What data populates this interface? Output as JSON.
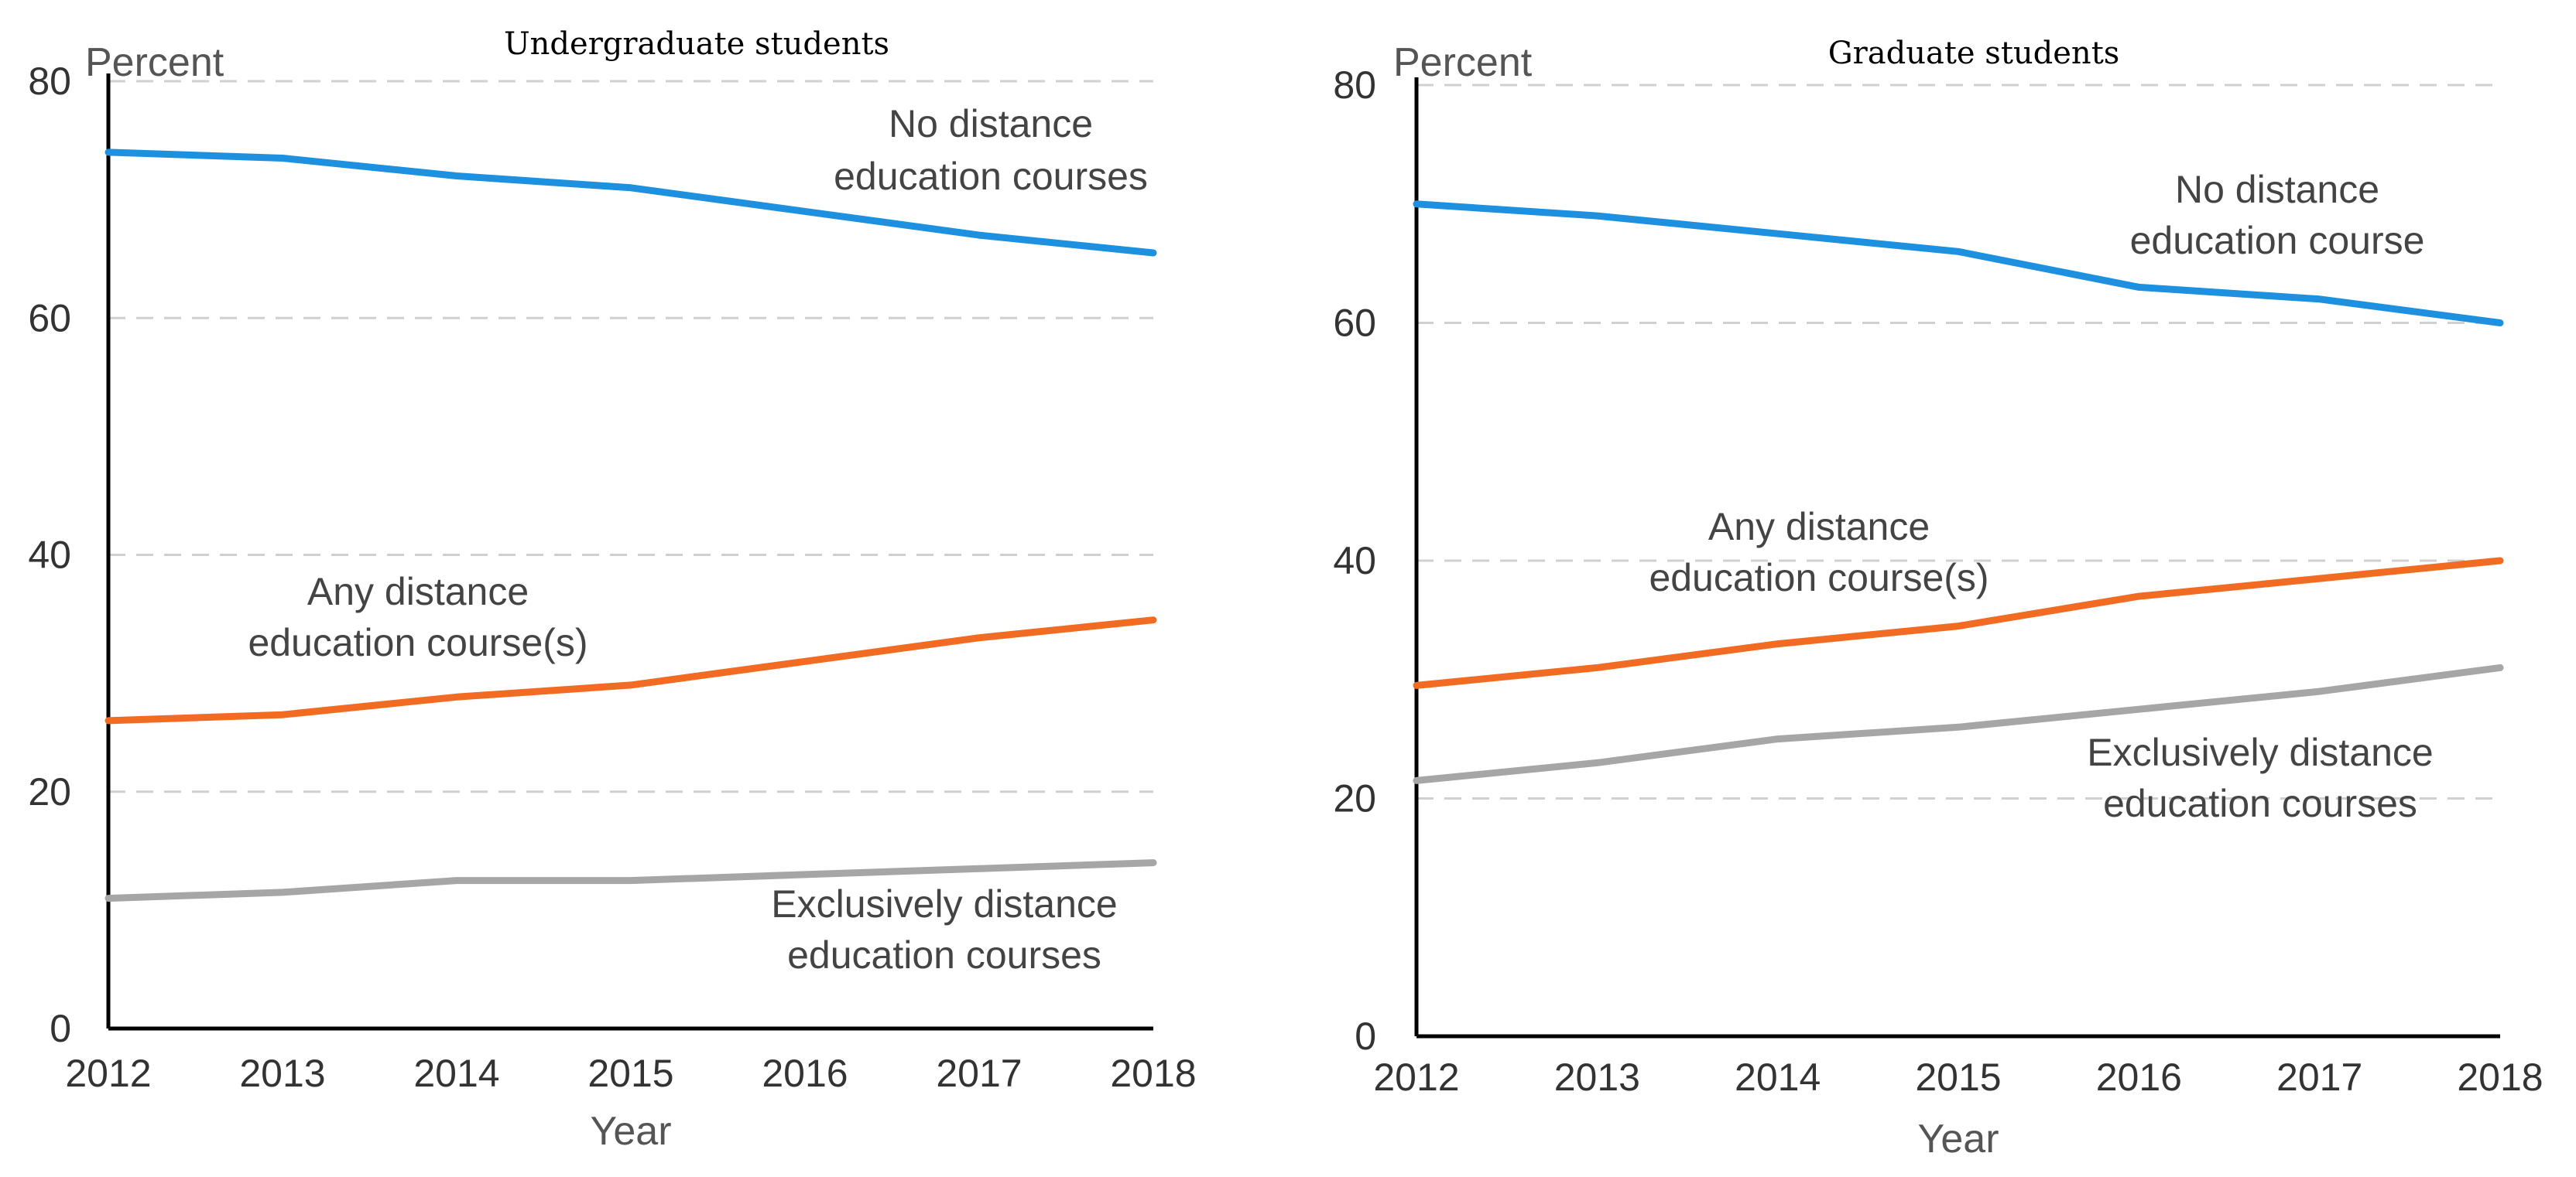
{
  "chart_data": [
    {
      "type": "line",
      "title": "Undergraduate students",
      "ylabel": "Percent",
      "xlabel": "Year",
      "x": [
        2012,
        2013,
        2014,
        2015,
        2016,
        2017,
        2018
      ],
      "ylim": [
        0,
        80
      ],
      "yticks": [
        0,
        20,
        40,
        60,
        80
      ],
      "grid": true,
      "series": [
        {
          "name": "No distance education courses",
          "label_lines": [
            "No distance",
            "education courses"
          ],
          "color": "#1e90e0",
          "values": [
            74,
            73.5,
            72,
            71,
            69,
            67,
            65.5
          ]
        },
        {
          "name": "Any distance education course(s)",
          "label_lines": [
            "Any distance",
            "education course(s)"
          ],
          "color": "#f26b22",
          "values": [
            26,
            26.5,
            28,
            29,
            31,
            33,
            34.5
          ]
        },
        {
          "name": "Exclusively distance education courses",
          "label_lines": [
            "Exclusively distance",
            "education courses"
          ],
          "color": "#a6a6a6",
          "values": [
            11,
            11.5,
            12.5,
            12.5,
            13,
            13.5,
            14
          ]
        }
      ]
    },
    {
      "type": "line",
      "title": "Graduate students",
      "ylabel": "Percent",
      "xlabel": "Year",
      "x": [
        2012,
        2013,
        2014,
        2015,
        2016,
        2017,
        2018
      ],
      "ylim": [
        0,
        80
      ],
      "yticks": [
        0,
        20,
        40,
        60,
        80
      ],
      "grid": true,
      "series": [
        {
          "name": "No distance education course",
          "label_lines": [
            "No distance",
            "education course"
          ],
          "color": "#1e90e0",
          "values": [
            70,
            69,
            67.5,
            66,
            63,
            62,
            60
          ]
        },
        {
          "name": "Any distance education course(s)",
          "label_lines": [
            "Any distance",
            "education course(s)"
          ],
          "color": "#f26b22",
          "values": [
            29.5,
            31,
            33,
            34.5,
            37,
            38.5,
            40
          ]
        },
        {
          "name": "Exclusively distance education courses",
          "label_lines": [
            "Exclusively distance",
            "education courses"
          ],
          "color": "#a6a6a6",
          "values": [
            21.5,
            23,
            25,
            26,
            27.5,
            29,
            31
          ]
        }
      ]
    }
  ]
}
